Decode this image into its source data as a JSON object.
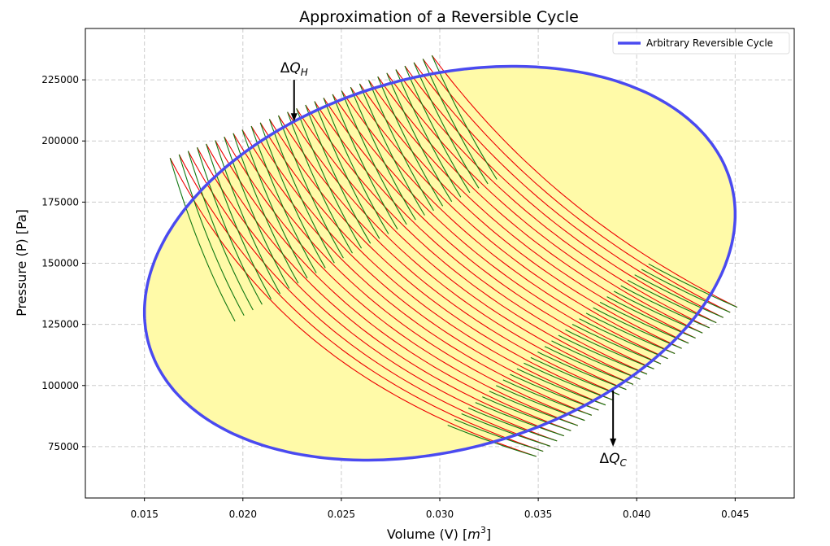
{
  "chart_data": {
    "type": "line",
    "title": "Approximation of a Reversible Cycle",
    "xlabel": "Volume (V) [m³]",
    "xlabel_main": "Volume (V) [",
    "xlabel_unit": "m",
    "xlabel_sup": "3",
    "xlabel_end": "]",
    "ylabel": "Pressure (P) [Pa]",
    "xlim": [
      0.012,
      0.048
    ],
    "ylim": [
      54000,
      246000
    ],
    "grid": true,
    "x_ticks": [
      0.015,
      0.02,
      0.025,
      0.03,
      0.035,
      0.04,
      0.045
    ],
    "x_tick_labels": [
      "0.015",
      "0.020",
      "0.025",
      "0.030",
      "0.035",
      "0.040",
      "0.045"
    ],
    "y_ticks": [
      75000,
      100000,
      125000,
      150000,
      175000,
      200000,
      225000
    ],
    "y_tick_labels": [
      "75000",
      "100000",
      "125000",
      "150000",
      "175000",
      "200000",
      "225000"
    ],
    "legend": {
      "placement": "top-right",
      "entries": [
        {
          "label": "Arbitrary Reversible Cycle",
          "color": "#4a4af0"
        }
      ]
    },
    "cycle": {
      "name": "Arbitrary Reversible Cycle",
      "shape": "ellipse",
      "center_v": 0.03,
      "center_p": 150000,
      "v_amplitude": 0.015,
      "p_cos_amplitude": 20000,
      "p_sin_amplitude": 78000,
      "line_color": "#4a4af0",
      "fill_color": "#fffaa8"
    },
    "isotherms": {
      "color": "#ee0000",
      "count": 30,
      "description": "Isothermal segments P·V = const (hyperbolas)"
    },
    "adiabats": {
      "color": "#117711",
      "gamma": 1.4,
      "description": "Adiabatic segments P·V^γ = const"
    },
    "annotations": [
      {
        "text_main": "ΔQ",
        "text_sub": "H",
        "label": "ΔQ_H",
        "arrow_from": [
          0.0226,
          225000
        ],
        "arrow_to": [
          0.0226,
          208000
        ]
      },
      {
        "text_main": "ΔQ",
        "text_sub": "C",
        "label": "ΔQ_C",
        "arrow_from": [
          0.0388,
          98000
        ],
        "arrow_to": [
          0.0388,
          75000
        ]
      }
    ]
  }
}
